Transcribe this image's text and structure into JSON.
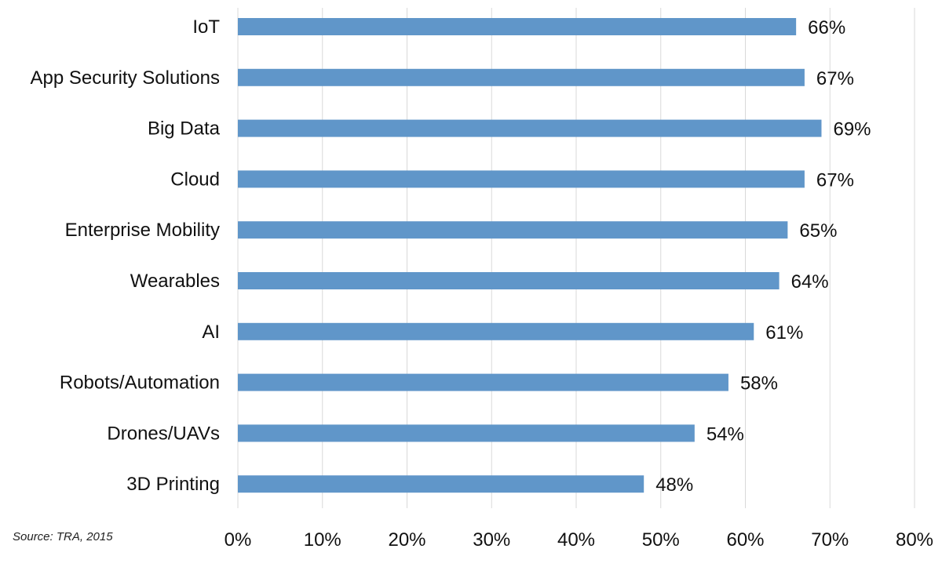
{
  "chart_data": {
    "type": "bar",
    "orientation": "horizontal",
    "categories": [
      "IoT",
      "App Security Solutions",
      "Big Data",
      "Cloud",
      "Enterprise Mobility",
      "Wearables",
      "AI",
      "Robots/Automation",
      "Drones/UAVs",
      "3D Printing"
    ],
    "values": [
      66,
      67,
      69,
      67,
      65,
      64,
      61,
      58,
      54,
      48
    ],
    "value_labels": [
      "66%",
      "67%",
      "69%",
      "67%",
      "65%",
      "64%",
      "61%",
      "58%",
      "54%",
      "48%"
    ],
    "xlim": [
      0,
      80
    ],
    "xticks": [
      0,
      10,
      20,
      30,
      40,
      50,
      60,
      70,
      80
    ],
    "xtick_labels": [
      "0%",
      "10%",
      "20%",
      "30%",
      "40%",
      "50%",
      "60%",
      "70%",
      "80%"
    ],
    "grid": "vertical",
    "legend": "none",
    "bar_color": "#6096C9",
    "grid_color": "#D9D9D9"
  },
  "source_note": "Source: TRA, 2015"
}
